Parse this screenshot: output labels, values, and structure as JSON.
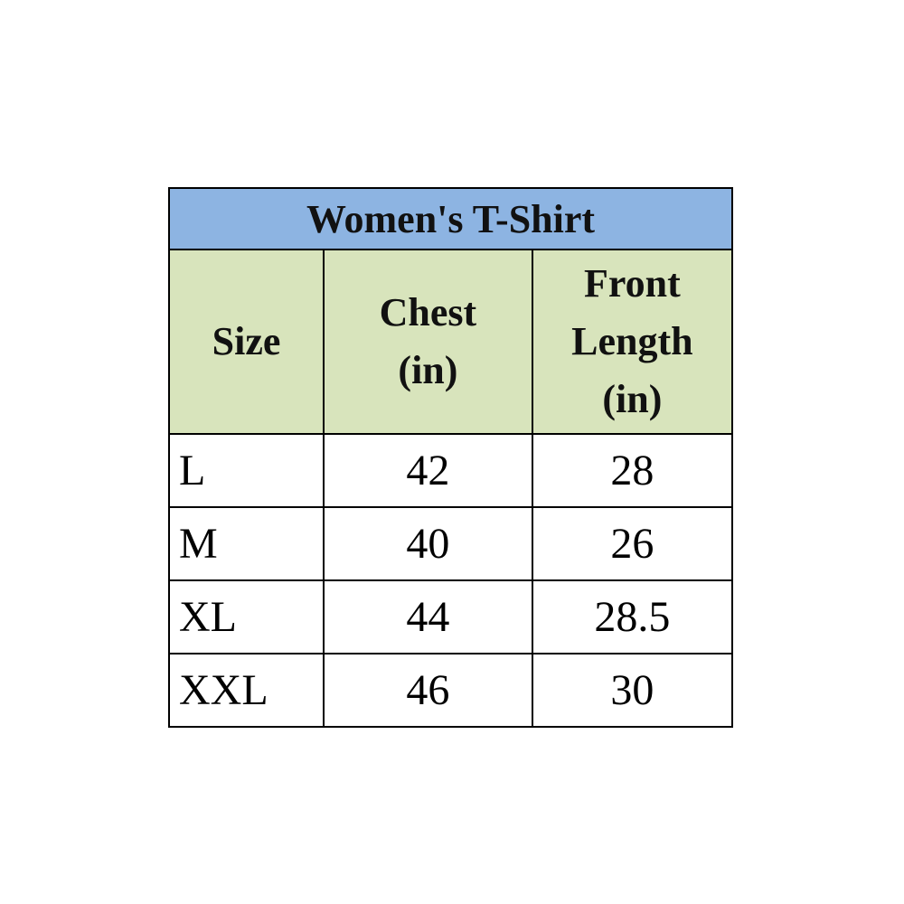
{
  "title": "Women's T-Shirt",
  "headers": [
    "Size",
    "Chest (in)",
    "Front Length (in)"
  ],
  "rows": [
    [
      "L",
      "42",
      "28"
    ],
    [
      "M",
      "40",
      "26"
    ],
    [
      "XL",
      "44",
      "28.5"
    ],
    [
      "XXL",
      "46",
      "30"
    ]
  ],
  "colors": {
    "title_bg": "#8db4e2",
    "header_bg": "#d8e4bc"
  }
}
